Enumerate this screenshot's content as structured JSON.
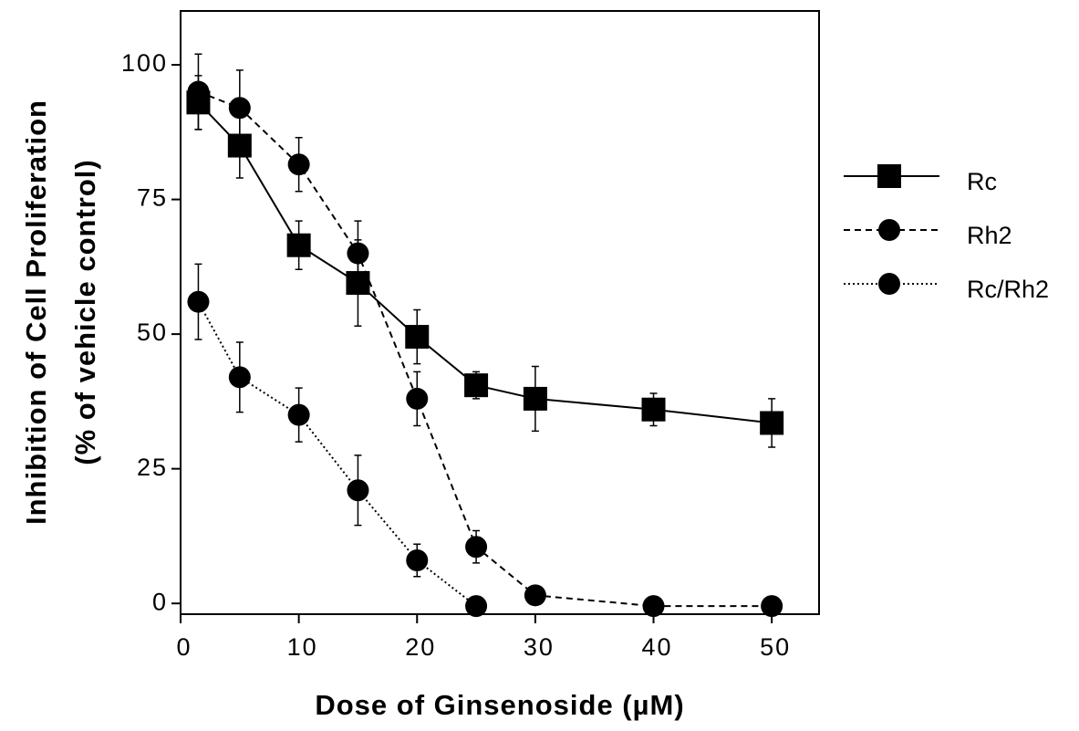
{
  "chart_data": {
    "type": "line",
    "xlabel": "Dose of Ginsenoside (µM)",
    "ylabel": [
      "Inhibition of Cell Proliferation",
      "(% of vehicle control)"
    ],
    "x": [
      1.5,
      5,
      10,
      15,
      20,
      25,
      30,
      40,
      50
    ],
    "series": [
      {
        "name": "Rc",
        "color": "#000000",
        "marker": "square",
        "linestyle": "solid",
        "values": [
          93,
          85,
          66.5,
          59.5,
          49.5,
          40.5,
          38,
          36,
          33.5
        ],
        "errors": [
          5,
          6,
          4.5,
          8,
          5,
          2.5,
          6,
          3,
          4.5
        ]
      },
      {
        "name": "Rh2",
        "color": "#000000",
        "marker": "circle",
        "linestyle": "dashed",
        "values": [
          95,
          92,
          81.5,
          65,
          38,
          10.5,
          1.5,
          -0.5,
          -0.5
        ],
        "errors": [
          7,
          7,
          5,
          6,
          5,
          3,
          1,
          0.5,
          0.5
        ]
      },
      {
        "name": "Rc/Rh2",
        "color": "#000000",
        "marker": "circle",
        "linestyle": "dotted",
        "values": [
          56,
          42,
          35,
          21,
          8,
          -0.5,
          null,
          null,
          null
        ],
        "errors": [
          7,
          6.5,
          5,
          6.5,
          3,
          0.5,
          null,
          null,
          null
        ]
      }
    ],
    "xlim": [
      0,
      54
    ],
    "ylim": [
      -2,
      110
    ],
    "xticks": [
      0,
      10,
      20,
      30,
      40,
      50
    ],
    "yticks": [
      0,
      25,
      50,
      75,
      100
    ],
    "legend": "right"
  }
}
